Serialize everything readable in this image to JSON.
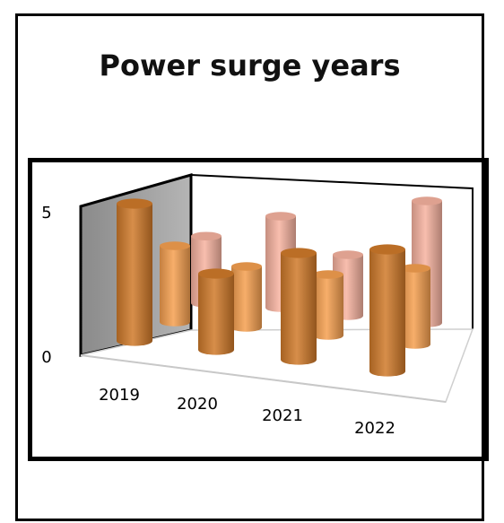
{
  "chart_data": {
    "type": "bar",
    "subtype": "3d-cylinder",
    "title": "Power surge years",
    "categories": [
      "2019",
      "2020",
      "2021",
      "2022"
    ],
    "series": [
      {
        "values": [
          2.2,
          3.0,
          2.0,
          4.0
        ],
        "color": "#f7b3a0"
      },
      {
        "values": [
          2.5,
          2.0,
          2.0,
          2.5
        ],
        "color": "#f5a050"
      },
      {
        "values": [
          4.5,
          2.5,
          3.5,
          4.0
        ],
        "color": "#d07a2a"
      }
    ],
    "y_ticks": [
      "0",
      "5"
    ],
    "ylim": [
      0,
      5
    ],
    "grid": false,
    "legend": "none"
  }
}
